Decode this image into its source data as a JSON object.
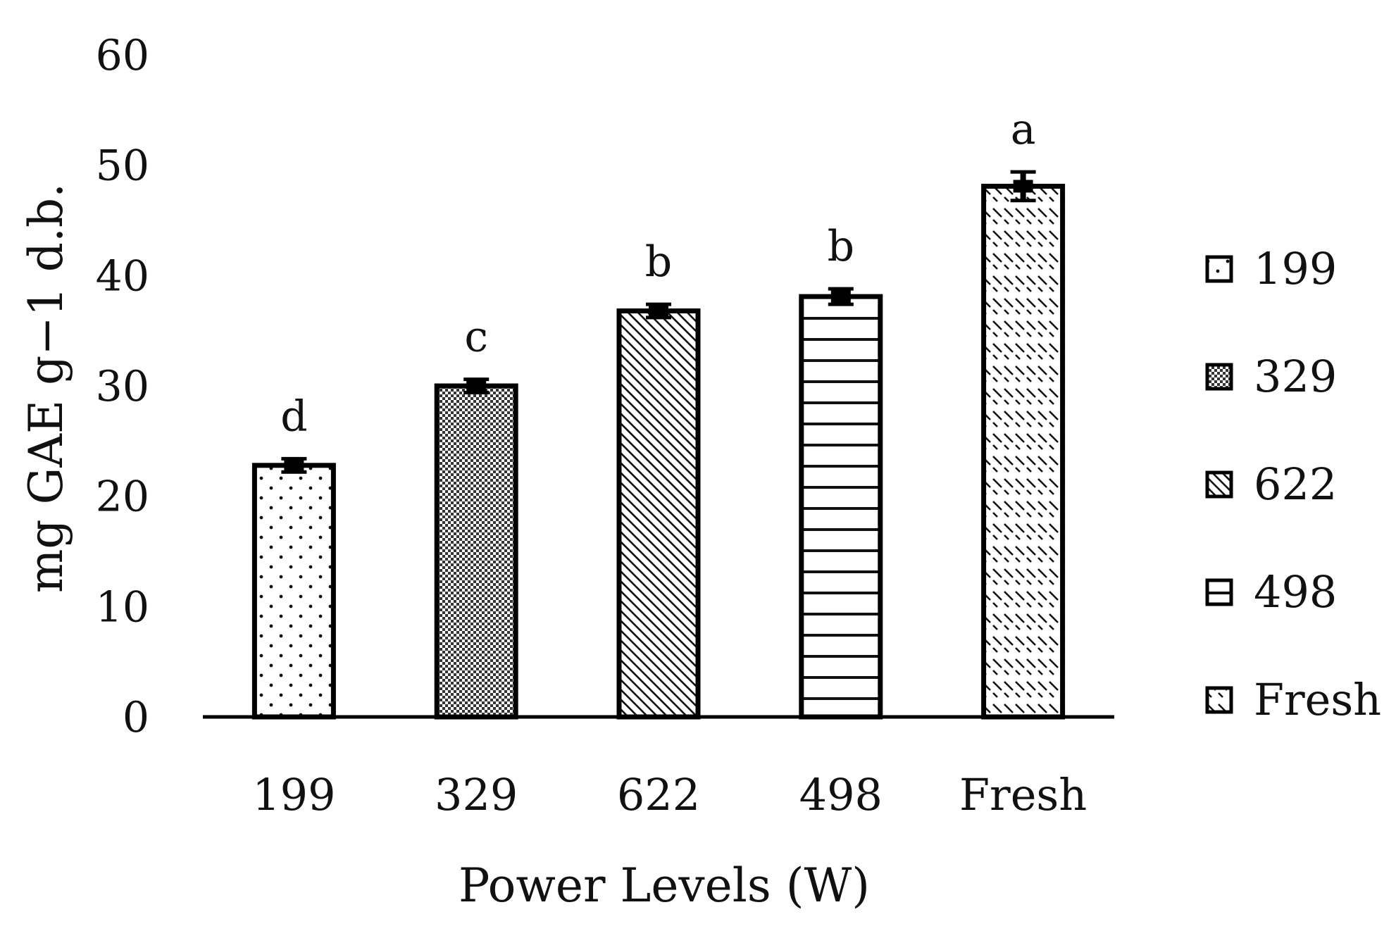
{
  "chart_data": {
    "type": "bar",
    "title": "",
    "xlabel": "Power Levels (W)",
    "ylabel": "mg GAE g−1 d.b.",
    "categories": [
      "199",
      "329",
      "622",
      "498",
      "Fresh"
    ],
    "values": [
      22.8,
      30.0,
      36.8,
      38.1,
      48.1
    ],
    "errors": [
      0.6,
      0.6,
      0.6,
      0.7,
      1.3
    ],
    "significance": [
      "d",
      "c",
      "b",
      "b",
      "a"
    ],
    "ylim": [
      0,
      60
    ],
    "yticks": [
      "0",
      "10",
      "20",
      "30",
      "40",
      "50",
      "60"
    ],
    "grid": false,
    "legend": {
      "position": "right",
      "entries": [
        "199",
        "329",
        "622",
        "498",
        "Fresh"
      ]
    },
    "patterns": [
      "dots",
      "crosshatch",
      "diagonal",
      "horizontal",
      "dashed-diagonal"
    ],
    "bar_edge_color": "#000000",
    "bar_fill_color": "#ffffff"
  }
}
